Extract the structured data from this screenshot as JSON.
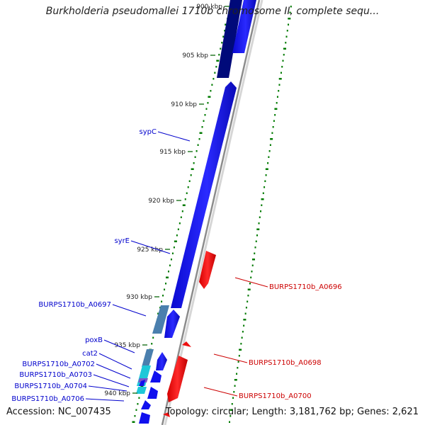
{
  "title": "Burkholderia pseudomallei 1710b chromosome II, complete sequ...",
  "footer": {
    "accession": "Accession: NC_007435",
    "summary": "Topology: circular; Length: 3,181,762 bp; Genes: 2,621"
  },
  "colors": {
    "forward_strand": "#1010ee",
    "dark_forward": "#000a7a",
    "reverse_strand": "#ee1111",
    "label_forward": "#0000cc",
    "label_reverse": "#cc0000",
    "gc_dots": "#007a00",
    "backbone": "#888888",
    "steel": "#4a7fae",
    "cyan": "#1ec8d8",
    "purple": "#7a55c8"
  },
  "ticks": [
    {
      "label": "900 kbp"
    },
    {
      "label": "905 kbp"
    },
    {
      "label": "910 kbp"
    },
    {
      "label": "915 kbp"
    },
    {
      "label": "920 kbp"
    },
    {
      "label": "925 kbp"
    },
    {
      "label": "930 kbp"
    },
    {
      "label": "935 kbp"
    },
    {
      "label": "940 kbp"
    }
  ],
  "gene_labels": {
    "sypC": "sypC",
    "syrE": "syrE",
    "a0697": "BURPS1710b_A0697",
    "poxB": "poxB",
    "cat2": "cat2",
    "a0702": "BURPS1710b_A0702",
    "a0703": "BURPS1710b_A0703",
    "a0704": "BURPS1710b_A0704",
    "a0706": "BURPS1710b_A0706",
    "a0696": "BURPS1710b_A0696",
    "a0698": "BURPS1710b_A0698",
    "a0700": "BURPS1710b_A0700"
  }
}
